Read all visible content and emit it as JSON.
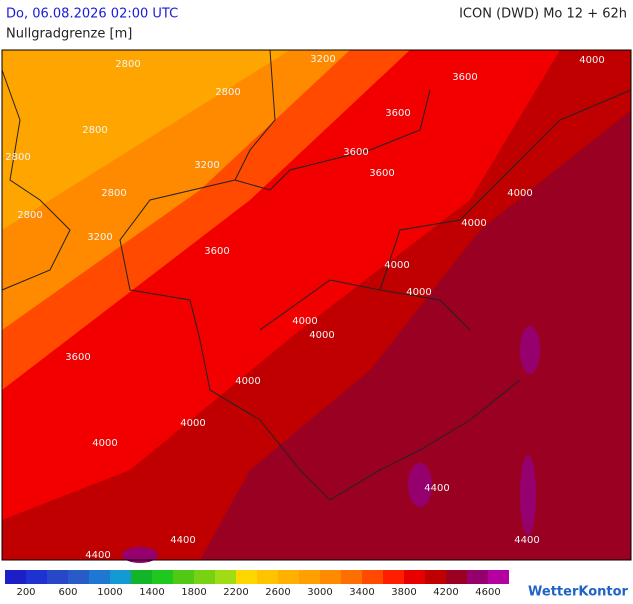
{
  "header": {
    "datetime": "Do, 06.08.2026 02:00 UTC",
    "model": "ICON (DWD) Mo 12 + 62h",
    "parameter": "Nullgradgrenze [m]"
  },
  "map": {
    "contour_labels": [
      "2800",
      "2800",
      "2800",
      "2800",
      "2800",
      "2800",
      "3200",
      "3200",
      "3200",
      "3600",
      "3600",
      "3600",
      "3600",
      "3600",
      "3600",
      "4000",
      "4000",
      "4000",
      "4000",
      "4000",
      "4000",
      "4000",
      "4000",
      "4000",
      "4000",
      "4400",
      "4400",
      "4400",
      "4400"
    ]
  },
  "legend": {
    "colors": [
      "#1e1ec8",
      "#1e32d2",
      "#2846c8",
      "#285ac8",
      "#1e78d2",
      "#149ad2",
      "#14b428",
      "#1ec81e",
      "#50c814",
      "#78d214",
      "#a0dc14",
      "#ffd700",
      "#ffc300",
      "#ffb000",
      "#ff9f00",
      "#ff8a00",
      "#ff6e00",
      "#ff4a00",
      "#ff1e00",
      "#e60000",
      "#c00000",
      "#9a0022",
      "#96006e",
      "#b400a0"
    ],
    "labels": [
      "200",
      "600",
      "1000",
      "1400",
      "1800",
      "2200",
      "2600",
      "3000",
      "3400",
      "3800",
      "4200",
      "4600"
    ]
  },
  "logo": "WetterKontor"
}
